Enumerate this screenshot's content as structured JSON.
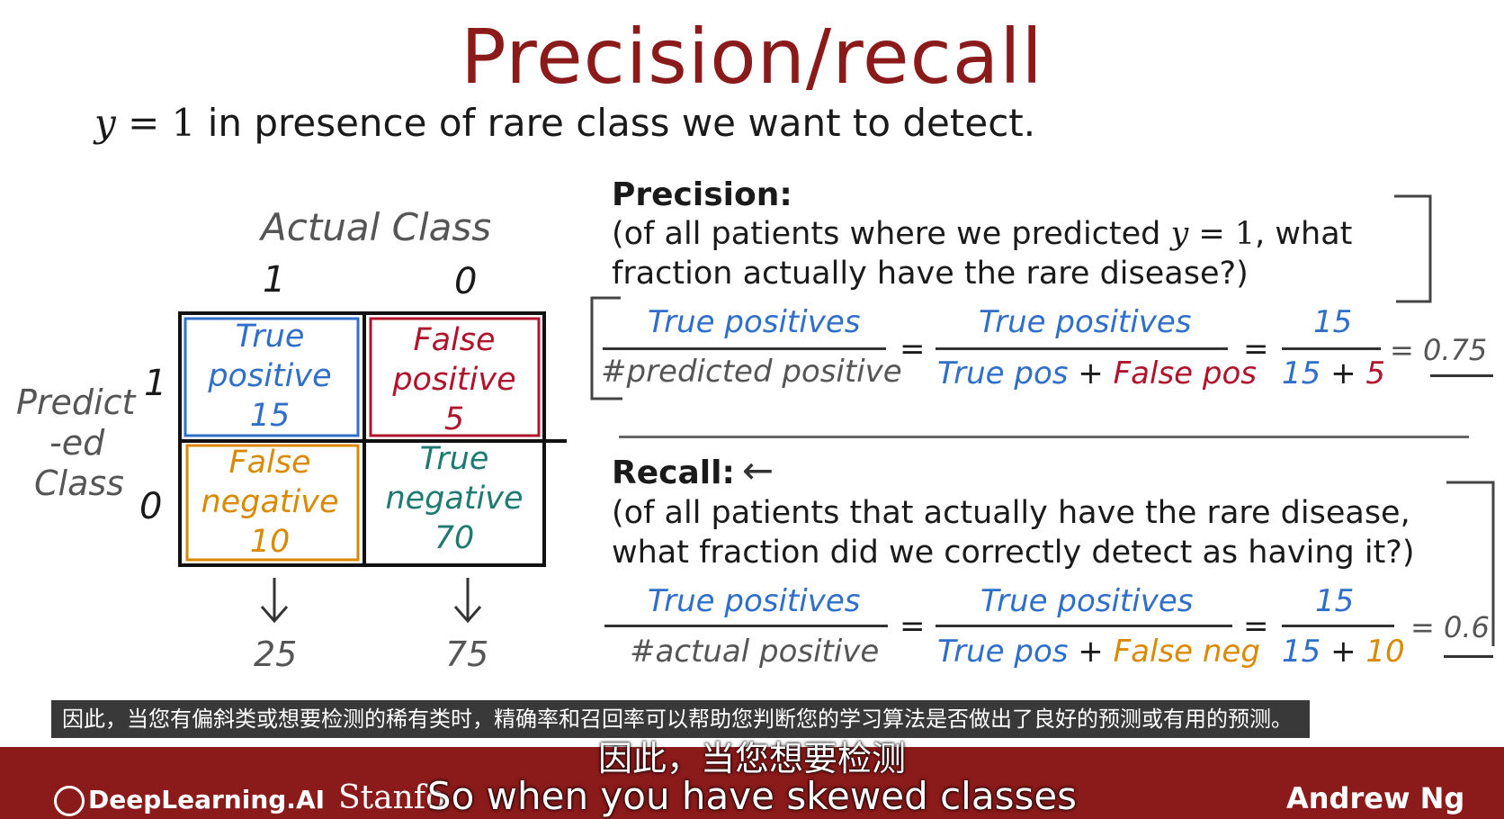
{
  "title": "Precision/recall",
  "subtitle": {
    "var": "y",
    "eq": " = ",
    "one": "1",
    "rest": " in presence of rare class we want to detect."
  },
  "matrix": {
    "actual_label": "Actual Class",
    "col1": "1",
    "col0": "0",
    "pred_label_1": "Predict",
    "pred_label_2": "-ed",
    "pred_label_3": "Class",
    "row1": "1",
    "row0": "0",
    "tp": {
      "line1": "True",
      "line2": "positive",
      "value": "15"
    },
    "fp": {
      "line1": "False",
      "line2": "positive",
      "value": "5"
    },
    "fn": {
      "line1": "False",
      "line2": "negative",
      "value": "10"
    },
    "tn": {
      "line1": "True",
      "line2": "negative",
      "value": "70"
    },
    "col_total_1": "25",
    "col_total_0": "75"
  },
  "precision": {
    "heading": "Precision:",
    "line1a": "(of all patients where we predicted ",
    "line1var": "y",
    "line1eq": " = ",
    "line1one": "1",
    "line1b": ", what",
    "line2": "fraction actually have the rare disease?)",
    "num1": "True positives",
    "den1": "#predicted positive",
    "num2": "True positives",
    "den2a": "True pos",
    "plus": "+",
    "den2b": "False pos",
    "num3": "15",
    "den3a": "15",
    "den3b": "5",
    "eq": "=",
    "result": "= 0.75"
  },
  "recall": {
    "heading": "Recall:",
    "arrow": "←",
    "line1": "(of all patients that actually have the rare disease,",
    "line2": "what fraction did we correctly detect as having it?)",
    "num1": "True positives",
    "den1": "#actual positive",
    "num2": "True positives",
    "den2a": "True pos",
    "plus": "+",
    "den2b": "False neg",
    "num3": "15",
    "den3a": "15",
    "den3b": "10",
    "eq": "=",
    "result": "= 0.6"
  },
  "caption": "因此，当您有偏斜类或想要检测的稀有类时，精确率和召回率可以帮助您判断您的学习算法是否做出了良好的预测或有用的预测。",
  "subtitle_cn": "因此，当您想要检测",
  "subtitle_en": "So when you have skewed classes",
  "footer": {
    "logo": "DeepLearning.AI",
    "stanford": "Stanfo",
    "presenter": "Andrew Ng"
  }
}
